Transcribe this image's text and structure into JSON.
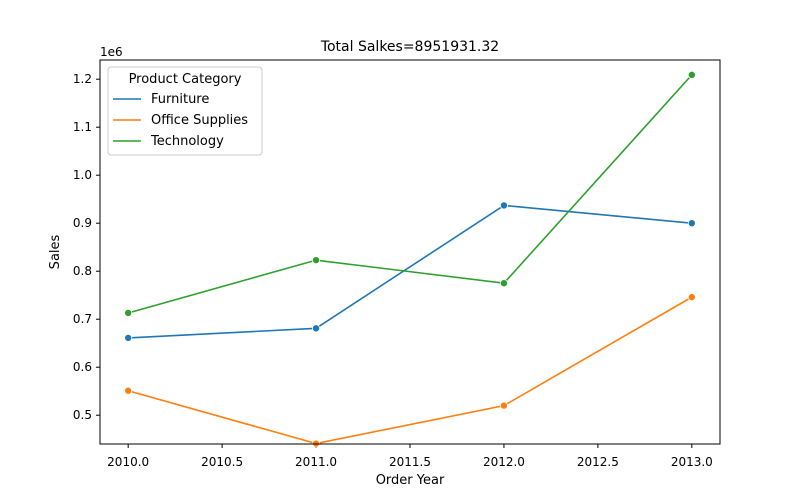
{
  "chart_data": {
    "type": "line",
    "title": "Total Salkes=8951931.32",
    "xlabel": "Order Year",
    "ylabel": "Sales",
    "y_offset_label": "1e6",
    "x": [
      2010,
      2011,
      2012,
      2013
    ],
    "xlim": [
      2009.85,
      2013.15
    ],
    "ylim": [
      0.44,
      1.24
    ],
    "x_ticks": [
      2010.0,
      2010.5,
      2011.0,
      2011.5,
      2012.0,
      2012.5,
      2013.0
    ],
    "x_tick_labels": [
      "2010.0",
      "2010.5",
      "2011.0",
      "2011.5",
      "2012.0",
      "2012.5",
      "2013.0"
    ],
    "y_ticks": [
      0.5,
      0.6,
      0.7,
      0.8,
      0.9,
      1.0,
      1.1,
      1.2
    ],
    "y_tick_labels": [
      "0.5",
      "0.6",
      "0.7",
      "0.8",
      "0.9",
      "1.0",
      "1.1",
      "1.2"
    ],
    "grid": false,
    "legend": {
      "title": "Product Category",
      "placement": "top-left"
    },
    "series": [
      {
        "name": "Furniture",
        "color": "#1f77b4",
        "values": [
          0.661,
          0.681,
          0.937,
          0.9
        ]
      },
      {
        "name": "Office Supplies",
        "color": "#ff7f0e",
        "values": [
          0.551,
          0.441,
          0.52,
          0.746
        ]
      },
      {
        "name": "Technology",
        "color": "#2ca02c",
        "values": [
          0.713,
          0.823,
          0.775,
          1.209
        ]
      }
    ]
  }
}
